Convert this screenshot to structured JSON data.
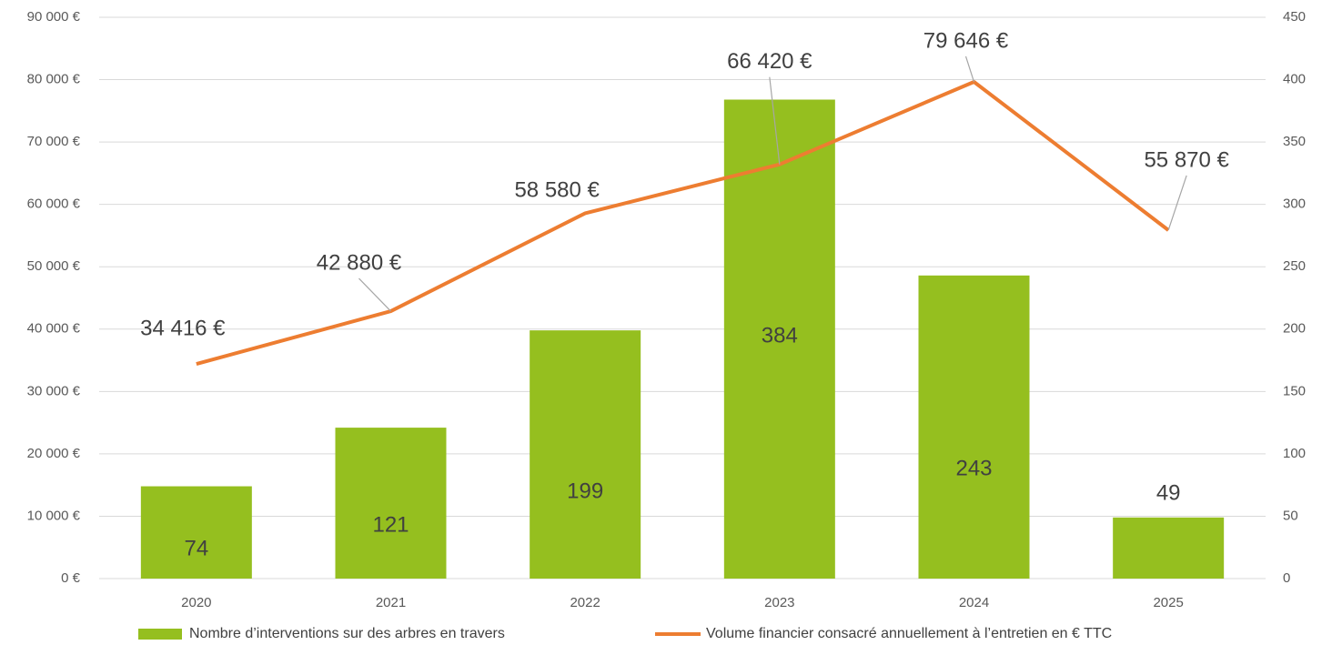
{
  "chart_data": {
    "type": "bar",
    "categories": [
      "2020",
      "2021",
      "2022",
      "2023",
      "2024",
      "2025"
    ],
    "series": [
      {
        "name": "Nombre d’interventions sur des arbres en travers",
        "type": "bar",
        "color": "#95bf1f",
        "axis": "y2",
        "values": [
          74,
          121,
          199,
          384,
          243,
          49
        ]
      },
      {
        "name": "Volume financier consacré annuellement à l’entretien en € TTC",
        "type": "line",
        "color": "#ed7d31",
        "values": [
          34416,
          42880,
          58580,
          66420,
          79646,
          55870
        ],
        "value_labels": [
          "34 416 €",
          "42 880 €",
          "58 580 €",
          "66 420 €",
          "79 646 €",
          "55 870 €"
        ]
      }
    ],
    "ylim": [
      0,
      90000
    ],
    "yticks": [
      {
        "value": 0,
        "label": "0 €"
      },
      {
        "value": 10000,
        "label": "10 000 €"
      },
      {
        "value": 20000,
        "label": "20 000 €"
      },
      {
        "value": 30000,
        "label": "30 000 €"
      },
      {
        "value": 40000,
        "label": "40 000 €"
      },
      {
        "value": 50000,
        "label": "50 000 €"
      },
      {
        "value": 60000,
        "label": "60 000 €"
      },
      {
        "value": 70000,
        "label": "70 000 €"
      },
      {
        "value": 80000,
        "label": "80 000 €"
      },
      {
        "value": 90000,
        "label": "90 000 €"
      }
    ],
    "y2lim": [
      0,
      450
    ],
    "y2ticks": [
      0,
      50,
      100,
      150,
      200,
      250,
      300,
      350,
      400,
      450
    ],
    "grid": true,
    "legend": "bottom"
  }
}
